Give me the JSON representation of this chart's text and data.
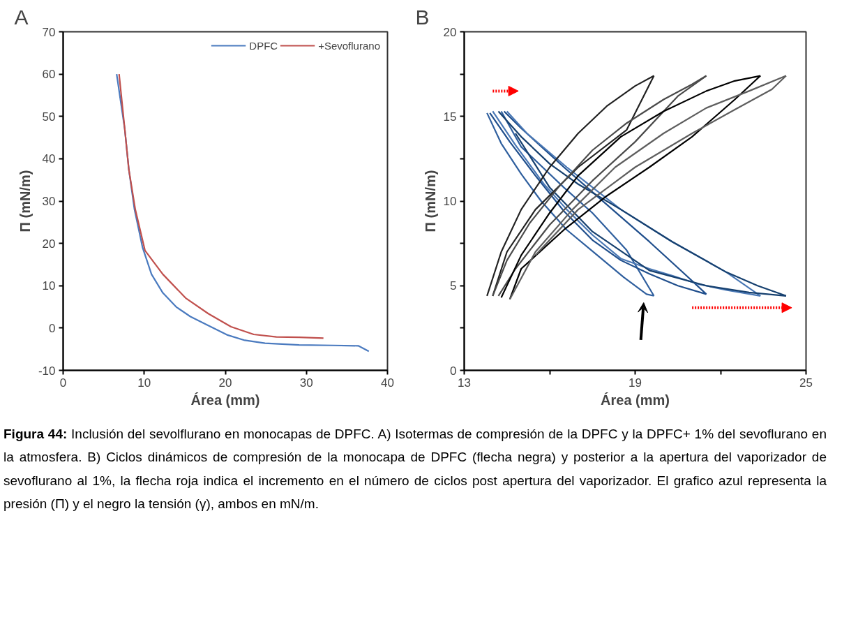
{
  "chart_data": [
    {
      "type": "line",
      "title": "A",
      "xlabel": "Área (mm)",
      "ylabel": "Π (mN/m)",
      "xlim": [
        0,
        40
      ],
      "ylim": [
        -10,
        70
      ],
      "xticks": [
        0,
        10,
        20,
        30,
        40
      ],
      "yticks": [
        -10,
        0,
        10,
        20,
        30,
        40,
        50,
        60,
        70
      ],
      "grid": false,
      "legend": "top right",
      "marker": "none",
      "line_style": "solid",
      "series": [
        {
          "name": "DPFC",
          "color": "#4a7abf",
          "x": [
            6.6,
            7.6,
            8.1,
            8.8,
            9.8,
            10.9,
            12.3,
            14.0,
            15.7,
            17.9,
            20.2,
            22.4,
            24.9,
            29.1,
            33.3,
            36.4,
            37.7
          ],
          "values": [
            60,
            47,
            37.5,
            28,
            19,
            12.7,
            8.3,
            4.9,
            2.7,
            0.6,
            -1.6,
            -2.9,
            -3.6,
            -4,
            -4.1,
            -4.2,
            -5.5
          ]
        },
        {
          "name": "+Sevoflurano",
          "color": "#c0504d",
          "x": [
            6.9,
            7.6,
            8.1,
            8.9,
            10.1,
            12.3,
            15.1,
            17.9,
            20.7,
            23.5,
            26.3,
            29.1,
            32.1
          ],
          "values": [
            60,
            47,
            37.5,
            28,
            18.3,
            12.7,
            7.1,
            3.4,
            0.3,
            -1.5,
            -2.1,
            -2.2,
            -2.4
          ]
        }
      ],
      "annotations": [
        "Figura 44: Inclusión del sevolflurano en monocapas de DPFC. A) Isotermas de compresión de la DPFC y la DPFC+ 1% del sevoflurano en la atmosfera. B) Ciclos dinámicos de compresión de la monocapa de DPFC (flecha negra) y posterior a la apertura del vaporizador de sevoflurano al 1%, la flecha roja indica el incremento en el número de ciclos post apertura del vaporizador. El grafico azul representa la presión (Π) y el negro la tensión (γ), ambos en mN/m."
      ]
    },
    {
      "type": "line",
      "title": "B",
      "xlabel": "Área (mm)",
      "ylabel": "Π (mN/m)",
      "xlim": [
        13,
        25
      ],
      "ylim": [
        0,
        20
      ],
      "xticks": [
        13,
        {
          "value": 16,
          "label": null
        },
        19,
        {
          "value": 22,
          "label": null
        },
        25
      ],
      "yticks": [
        0,
        {
          "value": 2.5,
          "label": null
        },
        5,
        {
          "value": 7.5,
          "label": null
        },
        10,
        {
          "value": 12.5,
          "label": null
        },
        15,
        {
          "value": 17.5,
          "label": null
        },
        20
      ],
      "grid": false,
      "marker": "none",
      "line_style": "solid",
      "series": [
        {
          "color": "#2f5f9e",
          "x": [
            13.8,
            14.3,
            15.0,
            15.7,
            16.6,
            17.6,
            18.6,
            19.4,
            19.66
          ],
          "values": [
            15.2,
            13.4,
            11.6,
            10.0,
            8.3,
            6.9,
            5.5,
            4.5,
            4.4
          ]
        },
        {
          "color": "#2f5f9e",
          "x": [
            19.66,
            18.7,
            17.5,
            16.5,
            15.0,
            14.3
          ],
          "values": [
            4.4,
            7.1,
            9.3,
            10.8,
            13.2,
            15.3
          ]
        },
        {
          "color": "#1f4e8c",
          "x": [
            13.9,
            14.6,
            15.5,
            16.5,
            17.5,
            18.5,
            19.5,
            20.5,
            21.5
          ],
          "values": [
            15.2,
            13.5,
            11.5,
            9.4,
            7.7,
            6.5,
            5.7,
            5.0,
            4.5
          ]
        },
        {
          "color": "#1f4e8c",
          "x": [
            21.5,
            20.8,
            19.5,
            18.0,
            16.5,
            15.0,
            14.4
          ],
          "values": [
            4.5,
            5.6,
            7.6,
            9.8,
            12.0,
            14.3,
            15.3
          ]
        },
        {
          "color": "#4a78b5",
          "x": [
            14.0,
            14.8,
            15.8,
            16.6,
            17.5,
            18.5,
            19.5,
            20.3,
            21.2,
            22.2,
            23.4
          ],
          "values": [
            15.3,
            13.3,
            11.0,
            9.5,
            8.0,
            6.6,
            6.0,
            5.6,
            5.1,
            4.75,
            4.4
          ]
        },
        {
          "color": "#4a78b5",
          "x": [
            23.4,
            22.2,
            20.3,
            18.5,
            16.6,
            15.2,
            14.5
          ],
          "values": [
            4.4,
            5.8,
            7.6,
            9.5,
            12.0,
            14.0,
            15.3
          ]
        },
        {
          "color": "#16406f",
          "x": [
            14.2,
            15.0,
            16.0,
            17.0,
            18.5,
            20.3,
            22.2,
            23.3,
            24.3
          ],
          "values": [
            15.3,
            13.8,
            12.2,
            11.0,
            9.5,
            7.6,
            5.8,
            5.0,
            4.4
          ]
        },
        {
          "color": "#16406f",
          "x": [
            24.3,
            23.0,
            21.5,
            19.5,
            17.5,
            16.0,
            14.8
          ],
          "values": [
            4.4,
            4.6,
            5.0,
            5.9,
            8.2,
            10.8,
            14.0
          ]
        },
        {
          "color": "#222222",
          "x": [
            13.8,
            14.3,
            15.0,
            16.0,
            17.0,
            18.0,
            19.0,
            19.66
          ],
          "values": [
            4.4,
            7.0,
            9.5,
            12.0,
            14.0,
            15.6,
            16.8,
            17.4
          ]
        },
        {
          "color": "#222222",
          "x": [
            19.66,
            18.7,
            17.0,
            15.5,
            14.5,
            14.0
          ],
          "values": [
            17.4,
            14.2,
            12.0,
            9.5,
            7.0,
            4.4
          ]
        },
        {
          "color": "#4a4a4a",
          "x": [
            14.0,
            14.5,
            15.3,
            16.3,
            17.5,
            18.7,
            20.0,
            21.0,
            21.5
          ],
          "values": [
            4.4,
            6.5,
            8.7,
            10.8,
            13.0,
            14.6,
            16.0,
            16.9,
            17.4
          ]
        },
        {
          "color": "#4a4a4a",
          "x": [
            21.5,
            20.5,
            19.0,
            17.5,
            16.0,
            14.8,
            14.2
          ],
          "values": [
            17.4,
            16.2,
            13.5,
            11.2,
            8.6,
            6.0,
            4.4
          ]
        },
        {
          "color": "#000000",
          "x": [
            14.3,
            15.0,
            16.0,
            17.0,
            18.5,
            20.0,
            21.5,
            22.5,
            23.4
          ],
          "values": [
            4.3,
            6.8,
            9.3,
            11.5,
            13.8,
            15.3,
            16.5,
            17.1,
            17.4
          ]
        },
        {
          "color": "#000000",
          "x": [
            23.4,
            22.5,
            21.0,
            19.5,
            18.0,
            16.5,
            15.0,
            14.6
          ],
          "values": [
            17.4,
            16.0,
            13.8,
            12.0,
            10.3,
            8.3,
            6.0,
            4.2
          ]
        },
        {
          "color": "#5e5e5e",
          "x": [
            14.6,
            15.5,
            16.8,
            18.3,
            20.0,
            21.5,
            23.0,
            24.3
          ],
          "values": [
            4.2,
            7.0,
            9.5,
            12.0,
            14.0,
            15.5,
            16.5,
            17.4
          ]
        },
        {
          "color": "#5e5e5e",
          "x": [
            24.3,
            23.8,
            22.5,
            21.0,
            19.0,
            17.0,
            15.5
          ],
          "values": [
            17.4,
            16.6,
            15.4,
            14.0,
            12.0,
            9.5,
            6.8
          ]
        }
      ]
    }
  ]
}
